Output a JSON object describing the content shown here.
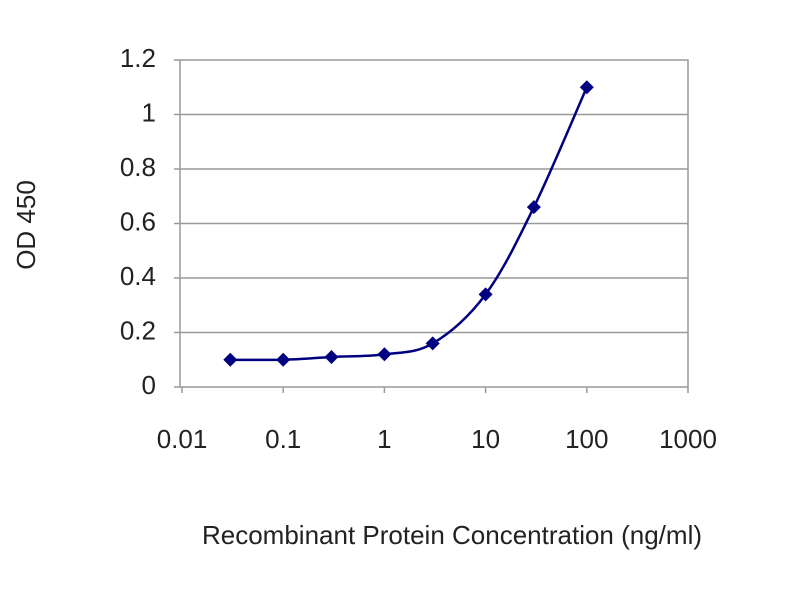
{
  "chart_data": {
    "type": "line",
    "x_label": "Recombinant Protein Concentration (ng/ml)",
    "y_label": "OD 450",
    "xscale": "log",
    "x": [
      0.03,
      0.1,
      0.3,
      1,
      3,
      10,
      30,
      100
    ],
    "series": [
      {
        "color": "#000080",
        "values": [
          0.1,
          0.1,
          0.11,
          0.12,
          0.16,
          0.34,
          0.66,
          1.1
        ]
      }
    ],
    "xlim": [
      0.01,
      1000
    ],
    "xticks": [
      0.01,
      0.1,
      1,
      10,
      100,
      1000
    ],
    "ylim": [
      0,
      1.2
    ],
    "yticks": [
      0,
      0.2,
      0.4,
      0.6,
      0.8,
      1,
      1.2
    ],
    "grid": true
  }
}
